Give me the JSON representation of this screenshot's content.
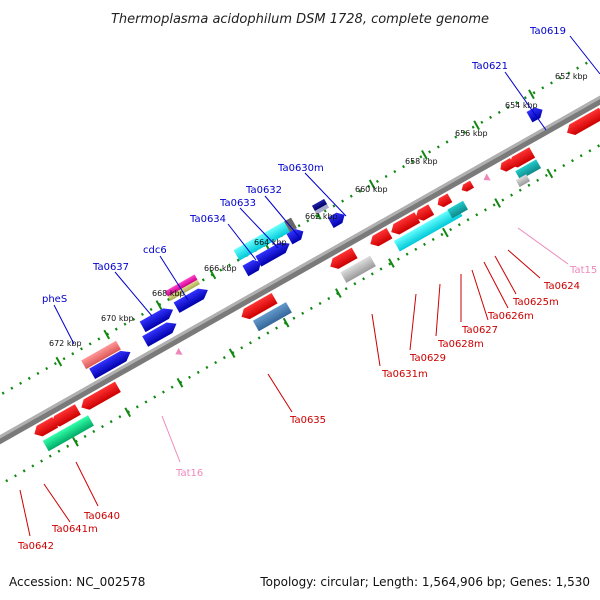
{
  "header": {
    "title": "Thermoplasma acidophilum DSM 1728, complete genome"
  },
  "footer": {
    "accession": "Accession: NC_002578",
    "summary": "Topology: circular; Length: 1,564,906 bp; Genes: 1,530"
  },
  "scale_ticks": [
    "652 kbp",
    "654 kbp",
    "656 kbp",
    "658 kbp",
    "660 kbp",
    "662 kbp",
    "664 kbp",
    "666 kbp",
    "668 kbp",
    "670 kbp",
    "672 kbp"
  ],
  "colors": {
    "forward_gene": "#0000ee",
    "reverse_gene": "#ee0000",
    "rna": "#ee88bb",
    "backbone": "#888888",
    "tick": "#118811",
    "highlight_cyan": "#00e5ee"
  },
  "forward_labels": [
    "Ta0619",
    "Ta0621",
    "Ta0630m",
    "Ta0632",
    "Ta0633",
    "Ta0634",
    "cdc6",
    "Ta0637",
    "pheS"
  ],
  "reverse_labels": [
    "Tat15",
    "Ta0624",
    "Ta0625m",
    "Ta0626m",
    "Ta0627",
    "Ta0628m",
    "Ta0629",
    "Ta0631m",
    "Ta0635",
    "Tat16",
    "Ta0640",
    "Ta0641m",
    "Ta0642"
  ]
}
